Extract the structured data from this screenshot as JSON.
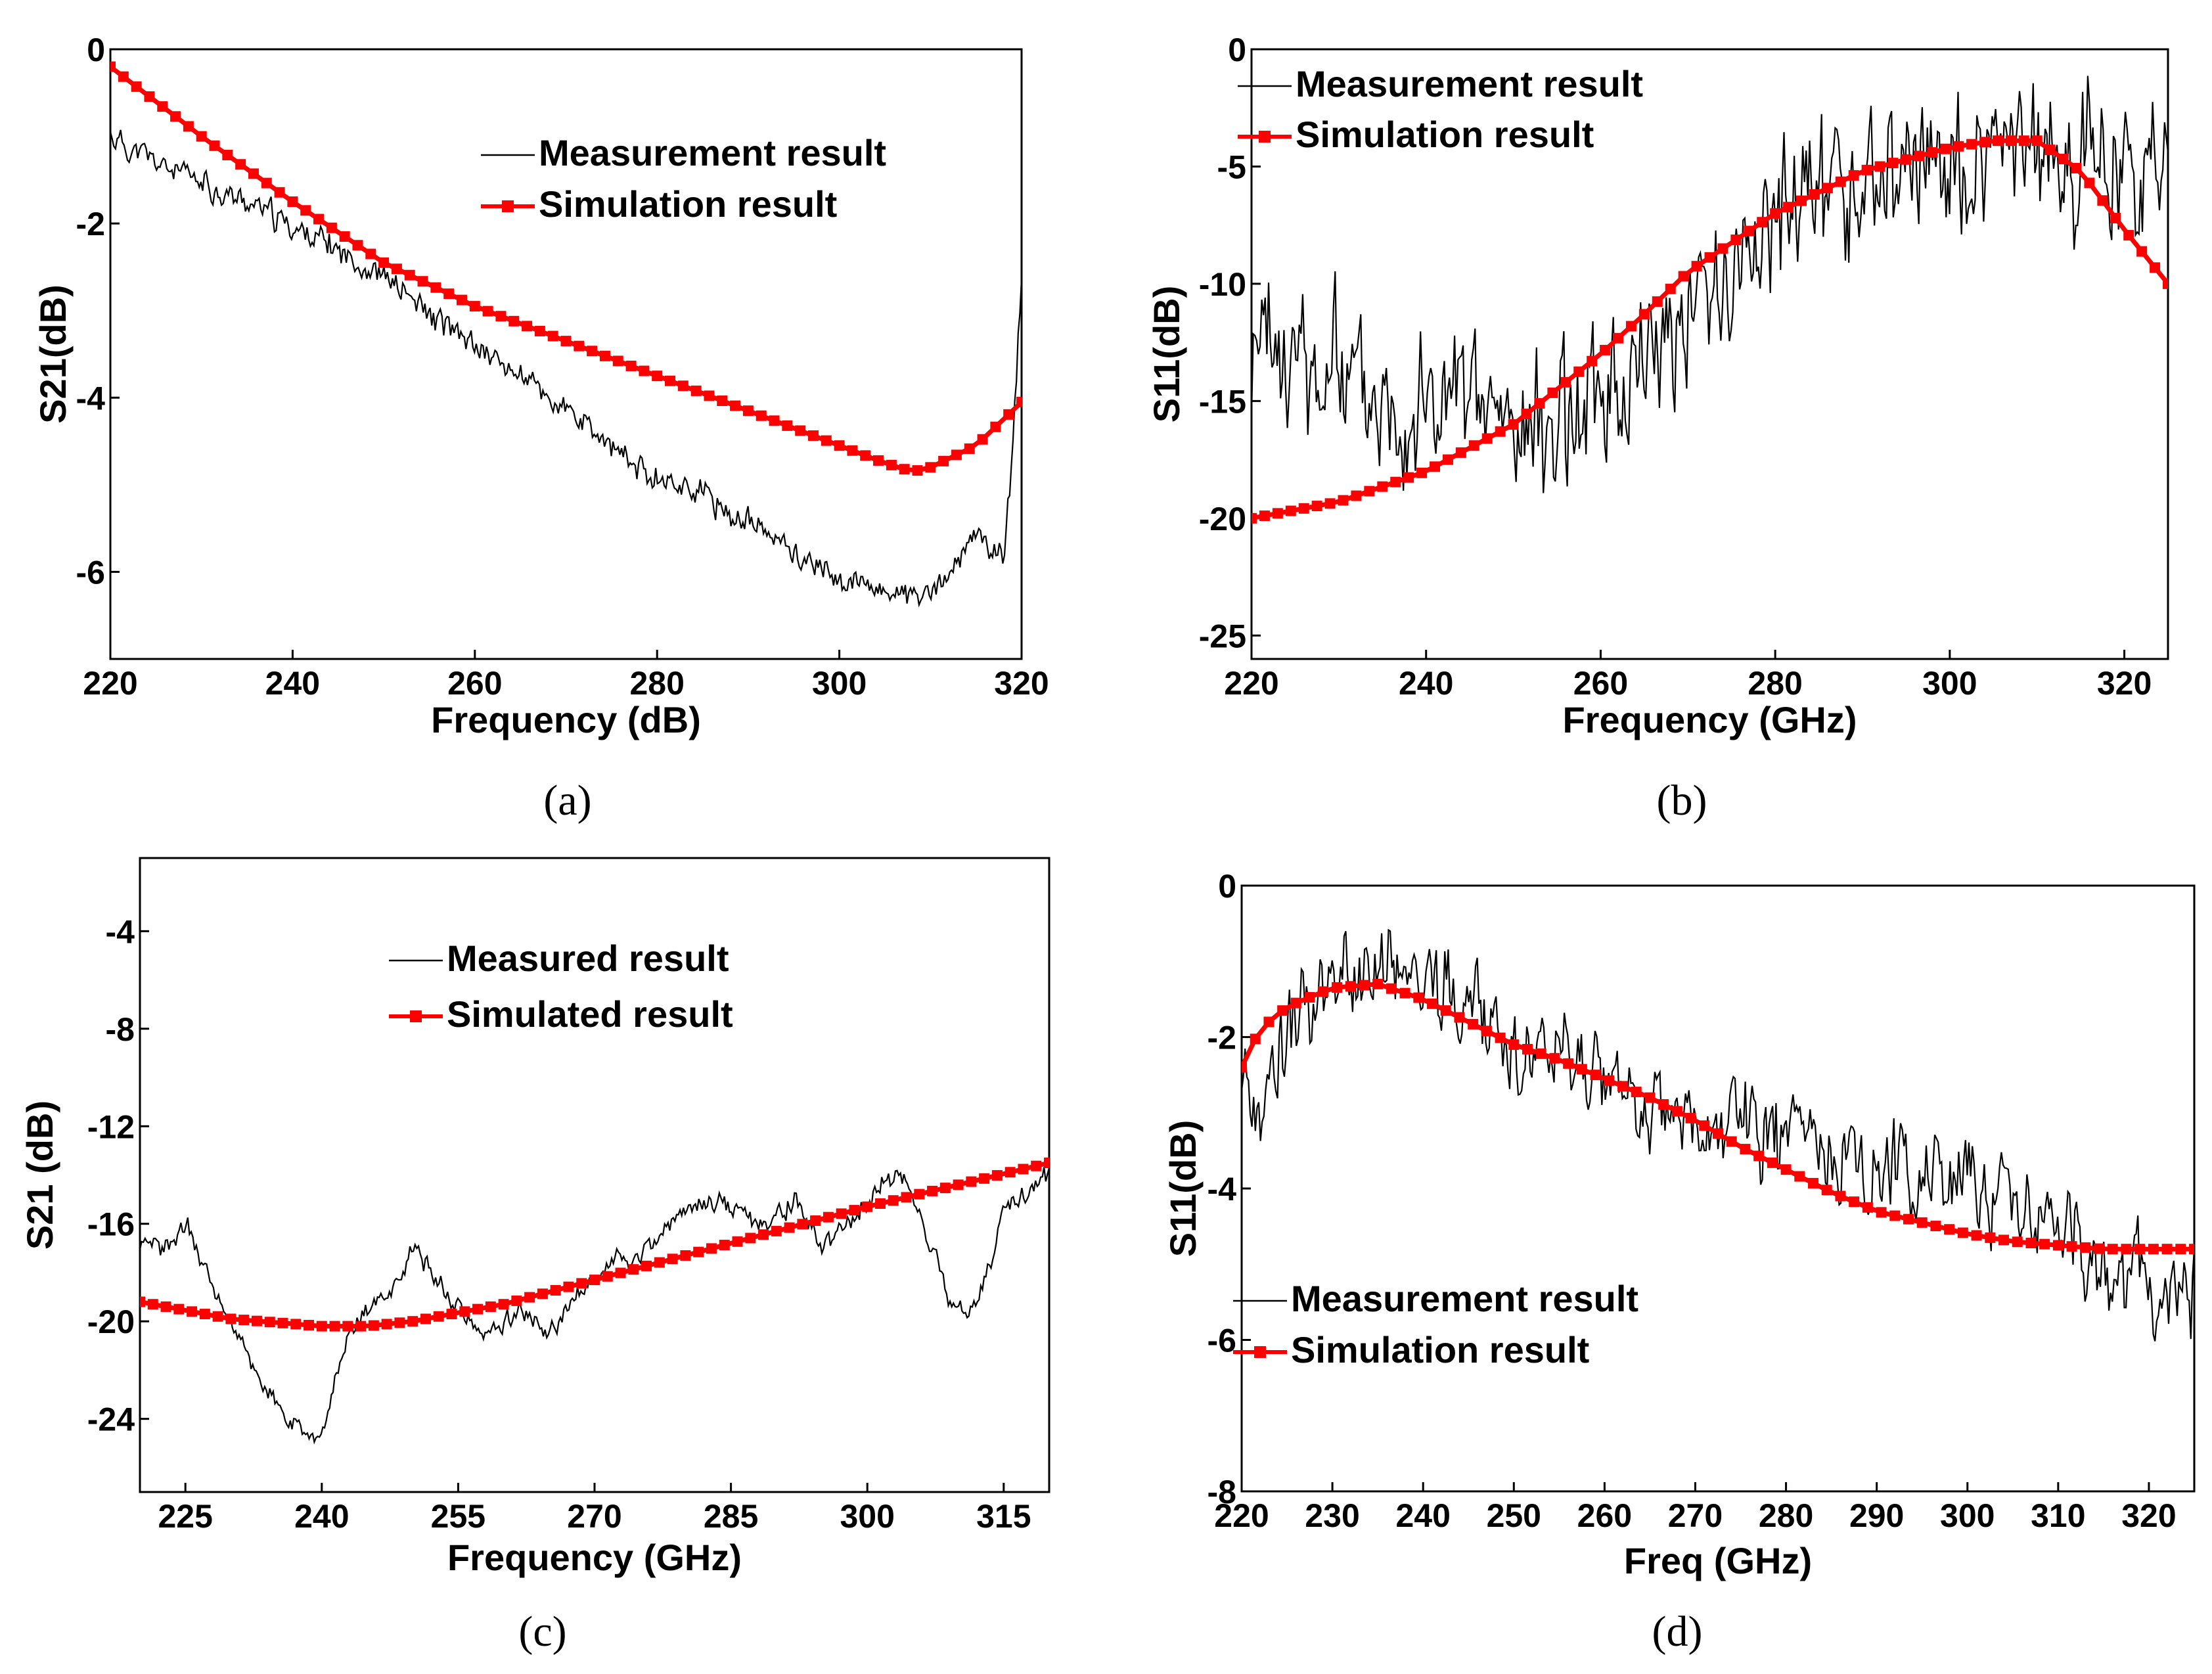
{
  "colors": {
    "measured": "#000000",
    "simulated": "#ff0000"
  },
  "chart_data": [
    {
      "id": "a",
      "type": "line",
      "caption": "(a)",
      "xlabel": "Frequency (dB)",
      "ylabel": "S21(dB)",
      "xlim": [
        220,
        320
      ],
      "ylim": [
        -7,
        0
      ],
      "xticks": [
        220,
        240,
        260,
        280,
        300,
        320
      ],
      "yticks": [
        0,
        -2,
        -4,
        -6
      ],
      "series": [
        {
          "name": "Measurement result",
          "style": "measured",
          "seed": 11,
          "noise": 0.13,
          "x": [
            220,
            225,
            230,
            235,
            240,
            245,
            250,
            255,
            260,
            265,
            270,
            275,
            280,
            285,
            290,
            295,
            300,
            305,
            310,
            315,
            318,
            319,
            320
          ],
          "y": [
            -1.0,
            -1.3,
            -1.55,
            -1.75,
            -2.05,
            -2.3,
            -2.6,
            -3.05,
            -3.4,
            -3.75,
            -4.15,
            -4.6,
            -4.9,
            -5.1,
            -5.45,
            -5.75,
            -6.1,
            -6.2,
            -6.3,
            -5.6,
            -5.8,
            -4.6,
            -2.6
          ]
        },
        {
          "name": "Simulation result",
          "style": "simulated",
          "x": [
            220,
            230,
            240,
            250,
            260,
            270,
            280,
            290,
            300,
            305,
            308,
            310,
            315,
            320
          ],
          "y": [
            -0.2,
            -1.0,
            -1.75,
            -2.45,
            -2.95,
            -3.35,
            -3.75,
            -4.15,
            -4.55,
            -4.75,
            -4.85,
            -4.8,
            -4.55,
            -4.05
          ]
        }
      ],
      "legend": "top-right"
    },
    {
      "id": "b",
      "type": "line",
      "caption": "(b)",
      "xlabel": "Frequency (GHz)",
      "ylabel": "S11(dB)",
      "xlim": [
        220,
        325
      ],
      "ylim": [
        -26,
        0
      ],
      "xticks": [
        220,
        240,
        260,
        280,
        300,
        320
      ],
      "yticks": [
        0,
        -5,
        -10,
        -15,
        -20,
        -25
      ],
      "series": [
        {
          "name": "Measurement result",
          "style": "measured",
          "seed": 23,
          "noise": 2.6,
          "x": [
            220,
            225,
            230,
            235,
            240,
            245,
            250,
            255,
            260,
            265,
            270,
            275,
            280,
            285,
            290,
            295,
            300,
            305,
            310,
            315,
            320,
            325
          ],
          "y": [
            -13,
            -13.5,
            -14,
            -14.5,
            -15,
            -15.5,
            -16,
            -16,
            -15,
            -13,
            -11,
            -9,
            -7.5,
            -6.5,
            -6,
            -5.5,
            -5,
            -5,
            -5,
            -4.5,
            -4.5,
            -5
          ]
        },
        {
          "name": "Simulation result",
          "style": "simulated",
          "x": [
            220,
            230,
            240,
            250,
            260,
            265,
            270,
            280,
            290,
            300,
            305,
            310,
            315,
            320,
            325
          ],
          "y": [
            -20,
            -19.3,
            -18,
            -16,
            -13,
            -11.3,
            -9.5,
            -7,
            -5.2,
            -4.2,
            -3.9,
            -3.9,
            -5.2,
            -7.7,
            -10
          ]
        }
      ],
      "legend": "top-left"
    },
    {
      "id": "c",
      "type": "line",
      "caption": "(c)",
      "xlabel": "Frequency (GHz)",
      "ylabel": "S21 (dB)",
      "xlim": [
        220,
        320
      ],
      "ylim": [
        -27,
        -1
      ],
      "xticks": [
        225,
        240,
        255,
        270,
        285,
        300,
        315
      ],
      "yticks": [
        -4,
        -8,
        -12,
        -16,
        -20,
        -24
      ],
      "series": [
        {
          "name": "Measured result",
          "style": "measured",
          "seed": 37,
          "noise": 0.35,
          "x": [
            220,
            223,
            225,
            228,
            232,
            236,
            238,
            240,
            242,
            245,
            248,
            250,
            253,
            256,
            258,
            262,
            265,
            268,
            270,
            272,
            275,
            278,
            280,
            283,
            286,
            289,
            292,
            295,
            298,
            301,
            304,
            306,
            309,
            312,
            315,
            318,
            320
          ],
          "y": [
            -17.2,
            -17,
            -16,
            -18.5,
            -21.5,
            -24,
            -24.5,
            -25,
            -21.5,
            -19.5,
            -18.5,
            -17,
            -18.5,
            -20,
            -20.5,
            -19.5,
            -20.5,
            -19,
            -18,
            -17.5,
            -17.5,
            -16,
            -15.5,
            -15,
            -15.5,
            -16,
            -15,
            -17,
            -16,
            -14.5,
            -14,
            -16,
            -19,
            -19.5,
            -15.5,
            -14.5,
            -14
          ]
        },
        {
          "name": "Simulated result",
          "style": "simulated",
          "x": [
            220,
            230,
            240,
            245,
            250,
            260,
            270,
            280,
            290,
            300,
            310,
            320
          ],
          "y": [
            -19.2,
            -19.9,
            -20.2,
            -20.2,
            -20,
            -19.3,
            -18.3,
            -17.3,
            -16.3,
            -15.3,
            -14.4,
            -13.5
          ]
        }
      ],
      "legend": "top-center"
    },
    {
      "id": "d",
      "type": "line",
      "caption": "(d)",
      "xlabel": "Freq (GHz)",
      "ylabel": "S11(dB)",
      "xlim": [
        220,
        325
      ],
      "ylim": [
        -8,
        0
      ],
      "xticks": [
        220,
        230,
        240,
        250,
        260,
        270,
        280,
        290,
        300,
        310,
        320
      ],
      "yticks": [
        0,
        -2,
        -4,
        -6,
        -8
      ],
      "series": [
        {
          "name": "Measurement result",
          "style": "measured",
          "seed": 53,
          "noise": 0.5,
          "x": [
            220,
            222,
            225,
            230,
            235,
            240,
            245,
            250,
            255,
            260,
            265,
            270,
            275,
            280,
            285,
            290,
            295,
            300,
            305,
            310,
            315,
            320,
            325
          ],
          "y": [
            -2.6,
            -2.8,
            -1.9,
            -1.3,
            -1.1,
            -1.2,
            -1.5,
            -2.4,
            -2.5,
            -2.6,
            -3,
            -3.2,
            -3.1,
            -3.4,
            -3.5,
            -3.6,
            -3.7,
            -4,
            -4.2,
            -4.6,
            -5,
            -5.4,
            -5.5
          ]
        },
        {
          "name": "Simulation result",
          "style": "simulated",
          "x": [
            220,
            222,
            225,
            230,
            235,
            240,
            245,
            250,
            255,
            260,
            265,
            270,
            275,
            280,
            285,
            290,
            295,
            300,
            305,
            310,
            315,
            320,
            325
          ],
          "y": [
            -2.4,
            -1.9,
            -1.6,
            -1.35,
            -1.3,
            -1.5,
            -1.8,
            -2.1,
            -2.3,
            -2.55,
            -2.8,
            -3.1,
            -3.45,
            -3.75,
            -4.05,
            -4.3,
            -4.45,
            -4.6,
            -4.7,
            -4.75,
            -4.8,
            -4.8,
            -4.8
          ]
        }
      ],
      "legend": "bottom-left"
    }
  ]
}
